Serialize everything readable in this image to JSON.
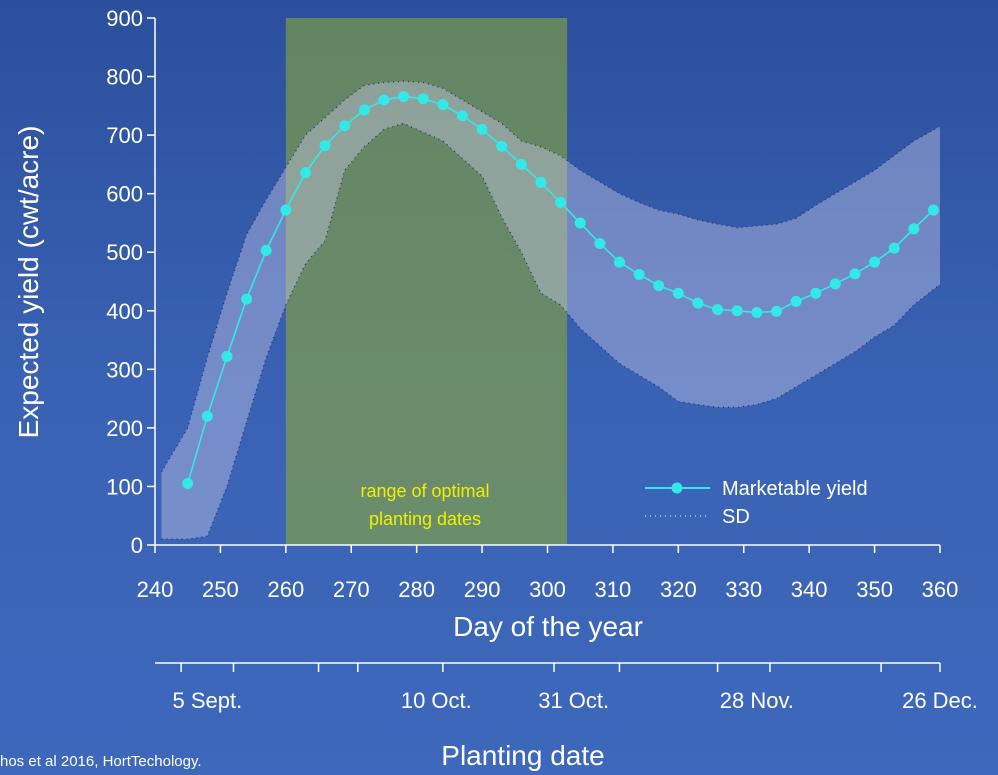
{
  "chart_data": {
    "type": "line",
    "ylabel": "Expected yield (cwt/acre)",
    "xlabel": "Day of the year",
    "ylim": [
      0,
      900
    ],
    "xlim": [
      240,
      360
    ],
    "yticks": [
      0,
      100,
      200,
      300,
      400,
      500,
      600,
      700,
      800,
      900
    ],
    "xticks": [
      240,
      250,
      260,
      270,
      280,
      290,
      300,
      310,
      320,
      330,
      340,
      350,
      360
    ],
    "series": [
      {
        "name": "Marketable yield",
        "color": "#33e8e8",
        "x": [
          245,
          248,
          251,
          254,
          257,
          260,
          263,
          266,
          269,
          272,
          275,
          278,
          281,
          284,
          287,
          290,
          293,
          296,
          299,
          302,
          305,
          308,
          311,
          314,
          317,
          320,
          323,
          326,
          329,
          332,
          335,
          338,
          341,
          344,
          347,
          350,
          353,
          356,
          359
        ],
        "y": [
          105,
          220,
          322,
          420,
          503,
          572,
          636,
          682,
          716,
          743,
          760,
          766,
          762,
          752,
          733,
          710,
          681,
          650,
          619,
          585,
          550,
          515,
          483,
          462,
          443,
          430,
          413,
          402,
          400,
          397,
          399,
          416,
          430,
          446,
          463,
          483,
          507,
          540,
          572
        ]
      },
      {
        "name": "SD",
        "color": "#c8c8e8",
        "x": [
          241,
          245,
          248,
          251,
          254,
          257,
          260,
          263,
          266,
          269,
          272,
          275,
          278,
          281,
          284,
          287,
          290,
          293,
          296,
          299,
          302,
          305,
          308,
          311,
          314,
          317,
          320,
          323,
          326,
          329,
          332,
          335,
          338,
          341,
          344,
          347,
          350,
          353,
          356,
          360
        ],
        "upper": [
          125,
          200,
          320,
          430,
          530,
          590,
          645,
          700,
          730,
          760,
          785,
          790,
          792,
          790,
          780,
          760,
          740,
          720,
          690,
          680,
          665,
          640,
          620,
          600,
          585,
          572,
          565,
          555,
          548,
          542,
          545,
          548,
          558,
          580,
          600,
          620,
          640,
          665,
          690,
          715
        ],
        "lower": [
          10,
          10,
          15,
          100,
          210,
          320,
          410,
          480,
          520,
          640,
          680,
          710,
          720,
          705,
          690,
          660,
          630,
          560,
          500,
          430,
          410,
          370,
          340,
          310,
          290,
          270,
          245,
          240,
          235,
          235,
          240,
          250,
          270,
          290,
          310,
          330,
          355,
          375,
          410,
          445
        ]
      }
    ],
    "legend": "bottom-right",
    "shaded_range": {
      "x": [
        260,
        303
      ],
      "label_lines": [
        "range of optimal",
        "planting dates"
      ],
      "color": "#8ba83a"
    },
    "secondary_axis": {
      "title": "Planting date",
      "ticks_x": [
        244,
        252,
        265,
        271,
        284,
        301,
        311,
        326,
        334,
        351,
        360
      ],
      "labels": [
        {
          "text": "5 Sept.",
          "x": 248
        },
        {
          "text": "10 Oct.",
          "x": 283
        },
        {
          "text": "31 Oct.",
          "x": 304
        },
        {
          "text": "28 Nov.",
          "x": 332
        },
        {
          "text": "26 Dec.",
          "x": 360
        }
      ]
    },
    "grid": false
  },
  "citation": "hos et al 2016, HortTechology."
}
